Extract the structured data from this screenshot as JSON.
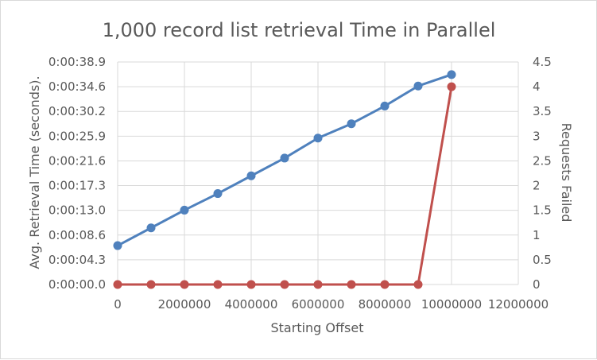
{
  "chart_data": {
    "type": "line",
    "title": "1,000 record list retrieval Time in Parallel",
    "xlabel": "Starting Offset",
    "ylabel": "Avg. Retrieval Time (seconds).",
    "y2label": "Requests Failed",
    "xlim": [
      0,
      12000000
    ],
    "xticks": [
      0,
      2000000,
      4000000,
      6000000,
      8000000,
      10000000,
      12000000
    ],
    "xtick_labels": [
      "0",
      "2000000",
      "4000000",
      "6000000",
      "8000000",
      "10000000",
      "12000000"
    ],
    "ylim_seconds": [
      0,
      38.9
    ],
    "ytick_labels": [
      "0:00:00.0",
      "0:00:04.3",
      "0:00:08.6",
      "0:00:13.0",
      "0:00:17.3",
      "0:00:21.6",
      "0:00:25.9",
      "0:00:30.2",
      "0:00:34.6",
      "0:00:38.9"
    ],
    "y2lim": [
      0,
      4.5
    ],
    "y2tick_labels": [
      "0",
      "0.5",
      "1",
      "1.5",
      "2",
      "2.5",
      "3",
      "3.5",
      "4",
      "4.5"
    ],
    "grid": true,
    "legend": "none",
    "series": [
      {
        "axis": "left",
        "color": "#4f81bd",
        "x": [
          0,
          1000000,
          2000000,
          3000000,
          4000000,
          5000000,
          6000000,
          7000000,
          8000000,
          9000000,
          10000000
        ],
        "values": [
          6.8,
          9.9,
          13.0,
          15.9,
          19.0,
          22.1,
          25.6,
          28.1,
          31.2,
          34.7,
          36.7
        ]
      },
      {
        "axis": "right",
        "color": "#c0504d",
        "x": [
          0,
          1000000,
          2000000,
          3000000,
          4000000,
          5000000,
          6000000,
          7000000,
          8000000,
          9000000,
          10000000
        ],
        "values": [
          0,
          0,
          0,
          0,
          0,
          0,
          0,
          0,
          0,
          0,
          4
        ]
      }
    ]
  }
}
